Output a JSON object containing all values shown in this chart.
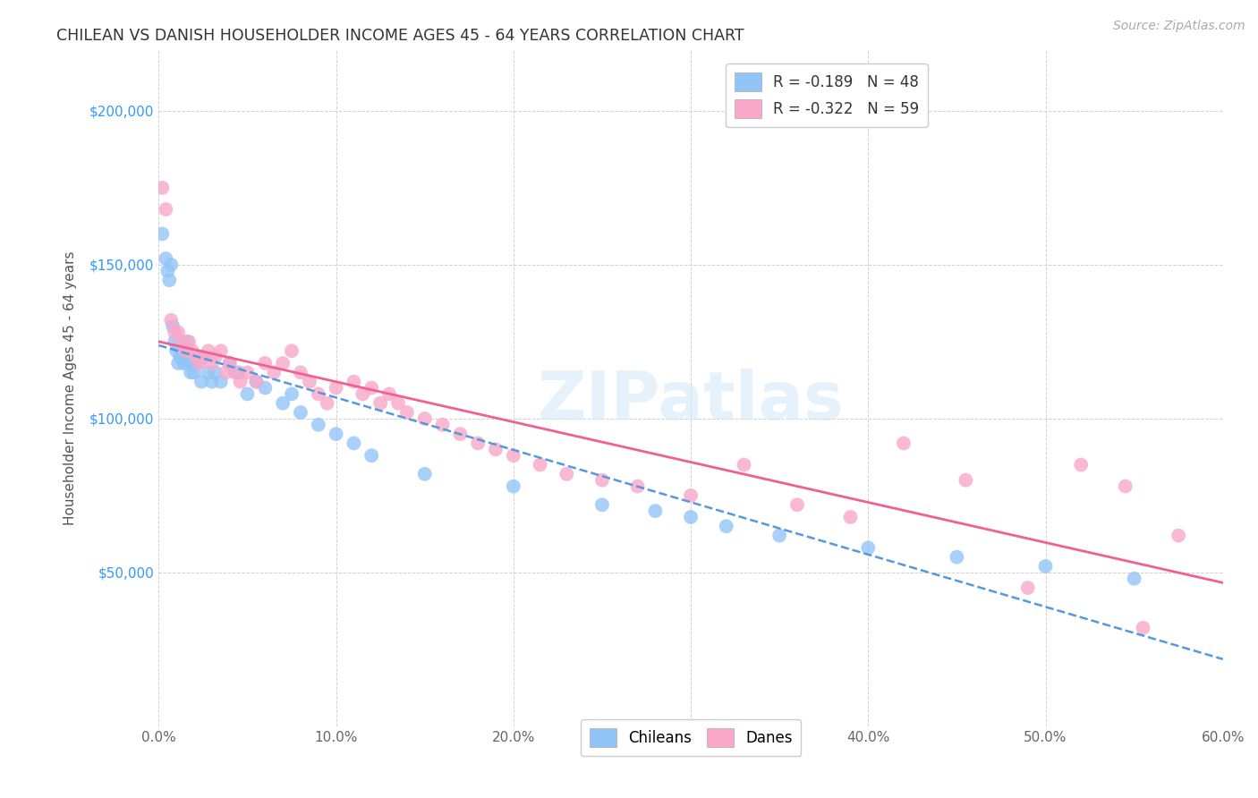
{
  "title": "CHILEAN VS DANISH HOUSEHOLDER INCOME AGES 45 - 64 YEARS CORRELATION CHART",
  "source": "Source: ZipAtlas.com",
  "xlabel_ticks": [
    "0.0%",
    "10.0%",
    "20.0%",
    "30.0%",
    "40.0%",
    "50.0%",
    "60.0%"
  ],
  "ylabel_label": "Householder Income Ages 45 - 64 years",
  "ylabel_ticks": [
    0,
    50000,
    100000,
    150000,
    200000
  ],
  "ylabel_tick_labels": [
    "",
    "$50,000",
    "$100,000",
    "$150,000",
    "$200,000"
  ],
  "xlim": [
    0.0,
    0.6
  ],
  "ylim": [
    0,
    220000
  ],
  "chilean_R": -0.189,
  "chilean_N": 48,
  "danish_R": -0.322,
  "danish_N": 59,
  "chilean_color": "#92c5f7",
  "danish_color": "#f9a8c9",
  "chilean_line_color": "#5599dd",
  "danish_line_color": "#f06090",
  "chilean_x": [
    0.002,
    0.004,
    0.005,
    0.006,
    0.007,
    0.008,
    0.009,
    0.01,
    0.011,
    0.012,
    0.013,
    0.014,
    0.015,
    0.016,
    0.017,
    0.018,
    0.019,
    0.02,
    0.022,
    0.024,
    0.025,
    0.028,
    0.03,
    0.032,
    0.035,
    0.04,
    0.045,
    0.05,
    0.055,
    0.06,
    0.07,
    0.075,
    0.08,
    0.09,
    0.1,
    0.11,
    0.12,
    0.15,
    0.2,
    0.25,
    0.28,
    0.3,
    0.32,
    0.35,
    0.4,
    0.45,
    0.5,
    0.55
  ],
  "chilean_y": [
    160000,
    152000,
    148000,
    145000,
    150000,
    130000,
    125000,
    122000,
    118000,
    120000,
    122000,
    118000,
    120000,
    125000,
    118000,
    115000,
    118000,
    115000,
    118000,
    112000,
    120000,
    115000,
    112000,
    115000,
    112000,
    118000,
    115000,
    108000,
    112000,
    110000,
    105000,
    108000,
    102000,
    98000,
    95000,
    92000,
    88000,
    82000,
    78000,
    72000,
    70000,
    68000,
    65000,
    62000,
    58000,
    55000,
    52000,
    48000
  ],
  "danish_x": [
    0.002,
    0.004,
    0.007,
    0.009,
    0.011,
    0.013,
    0.015,
    0.017,
    0.019,
    0.021,
    0.023,
    0.025,
    0.028,
    0.03,
    0.032,
    0.035,
    0.038,
    0.04,
    0.043,
    0.046,
    0.05,
    0.055,
    0.06,
    0.065,
    0.07,
    0.075,
    0.08,
    0.085,
    0.09,
    0.095,
    0.1,
    0.11,
    0.115,
    0.12,
    0.125,
    0.13,
    0.135,
    0.14,
    0.15,
    0.16,
    0.17,
    0.18,
    0.19,
    0.2,
    0.215,
    0.23,
    0.25,
    0.27,
    0.3,
    0.33,
    0.36,
    0.39,
    0.42,
    0.455,
    0.49,
    0.52,
    0.545,
    0.555,
    0.575
  ],
  "danish_y": [
    175000,
    168000,
    132000,
    128000,
    128000,
    125000,
    122000,
    125000,
    122000,
    120000,
    118000,
    120000,
    122000,
    118000,
    120000,
    122000,
    115000,
    118000,
    115000,
    112000,
    115000,
    112000,
    118000,
    115000,
    118000,
    122000,
    115000,
    112000,
    108000,
    105000,
    110000,
    112000,
    108000,
    110000,
    105000,
    108000,
    105000,
    102000,
    100000,
    98000,
    95000,
    92000,
    90000,
    88000,
    85000,
    82000,
    80000,
    78000,
    75000,
    85000,
    72000,
    68000,
    92000,
    80000,
    45000,
    85000,
    78000,
    32000,
    62000
  ],
  "watermark": "ZIPatlas",
  "background_color": "#ffffff",
  "grid_color": "#cccccc"
}
